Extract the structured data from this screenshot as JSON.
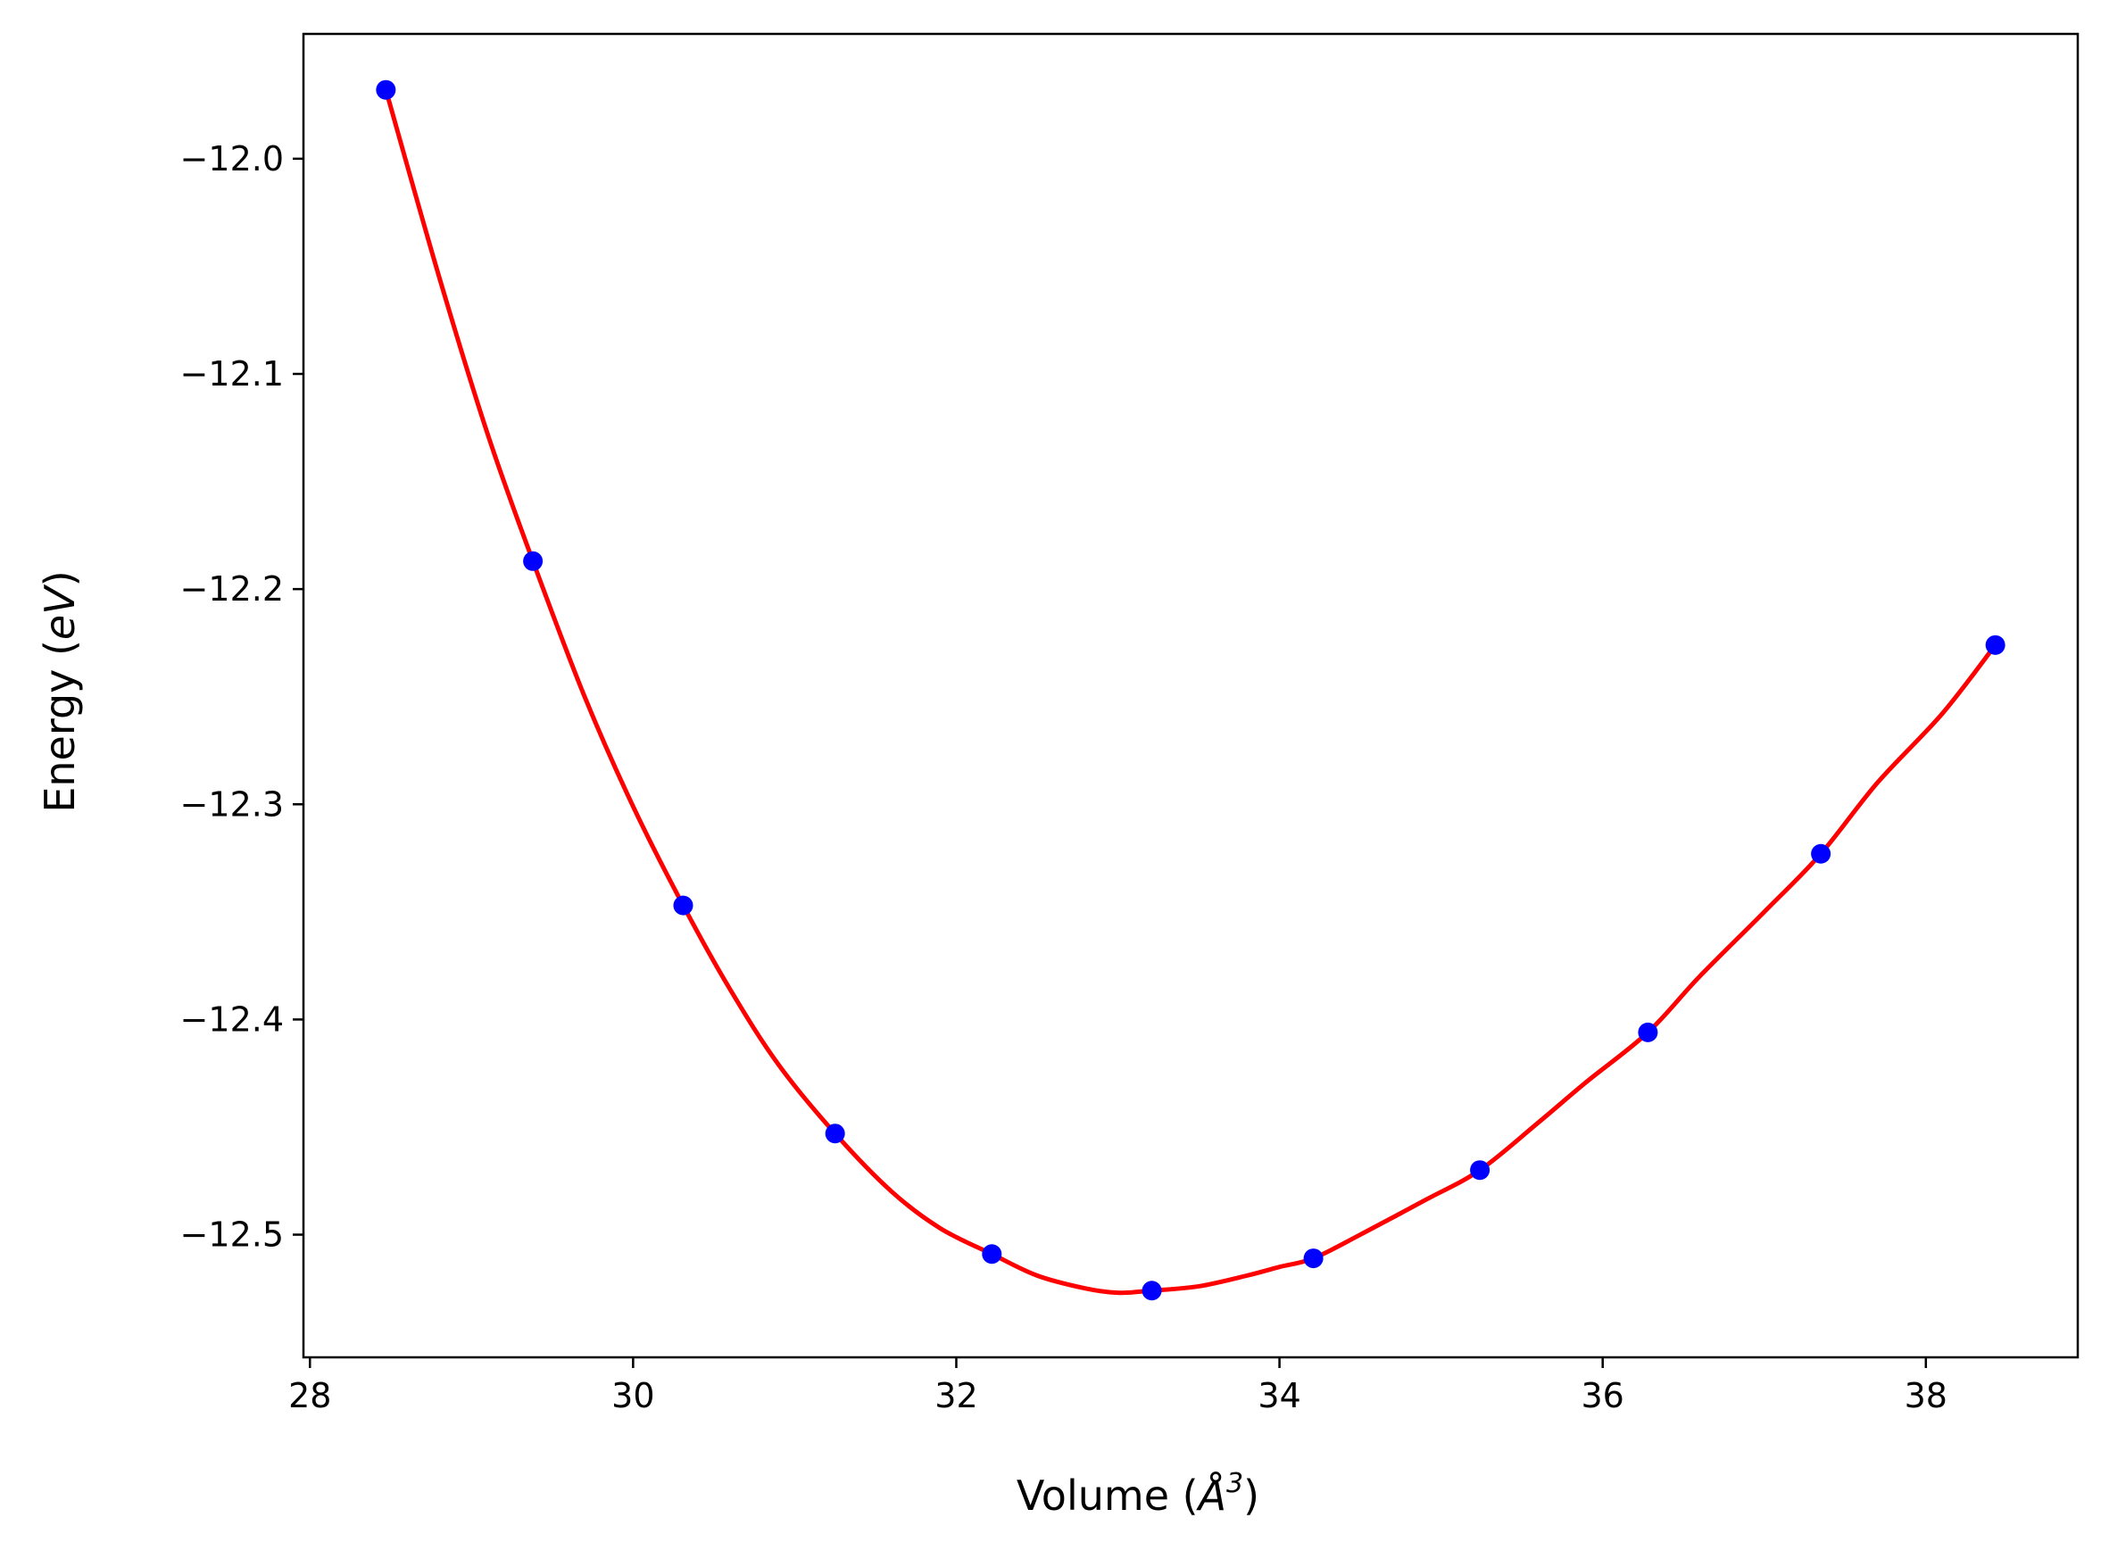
{
  "chart_data": {
    "type": "line",
    "title": "",
    "xlabel_parts": {
      "prefix": "Volume (",
      "unit": "Å",
      "exp": "3",
      "suffix": ")"
    },
    "ylabel_parts": {
      "prefix": "Energy (",
      "unit": "eV",
      "suffix": ")"
    },
    "xlim": [
      27.96,
      38.94
    ],
    "ylim": [
      -12.557,
      -11.942
    ],
    "xticks": [
      28,
      30,
      32,
      34,
      36,
      38
    ],
    "xtick_labels": [
      "28",
      "30",
      "32",
      "34",
      "36",
      "38"
    ],
    "yticks": [
      -12.0,
      -12.1,
      -12.2,
      -12.3,
      -12.4,
      -12.5
    ],
    "ytick_labels": [
      "−12.0",
      "−12.1",
      "−12.2",
      "−12.3",
      "−12.4",
      "−12.5"
    ],
    "grid": false,
    "series": [
      {
        "style": "markers",
        "color": "#0000ff",
        "x": [
          28.47,
          29.38,
          30.31,
          31.25,
          32.22,
          33.21,
          34.21,
          35.24,
          36.28,
          37.35,
          38.43
        ],
        "y": [
          -11.968,
          -12.187,
          -12.347,
          -12.453,
          -12.509,
          -12.526,
          -12.511,
          -12.47,
          -12.406,
          -12.323,
          -12.226
        ]
      },
      {
        "style": "line",
        "color": "#ff0000",
        "x": [
          28.47,
          28.8,
          29.1,
          29.38,
          29.7,
          30.0,
          30.31,
          30.6,
          30.9,
          31.25,
          31.6,
          31.9,
          32.22,
          32.5,
          32.8,
          33.0,
          33.21,
          33.5,
          33.8,
          34.0,
          34.21,
          34.5,
          34.9,
          35.24,
          35.6,
          35.9,
          36.28,
          36.6,
          37.0,
          37.35,
          37.7,
          38.1,
          38.43
        ],
        "y": [
          -11.968,
          -12.055,
          -12.128,
          -12.187,
          -12.25,
          -12.301,
          -12.347,
          -12.386,
          -12.421,
          -12.453,
          -12.48,
          -12.497,
          -12.509,
          -12.519,
          -12.525,
          -12.527,
          -12.526,
          -12.524,
          -12.519,
          -12.515,
          -12.511,
          -12.5,
          -12.484,
          -12.47,
          -12.448,
          -12.429,
          -12.406,
          -12.38,
          -12.35,
          -12.323,
          -12.29,
          -12.258,
          -12.226
        ]
      }
    ]
  }
}
